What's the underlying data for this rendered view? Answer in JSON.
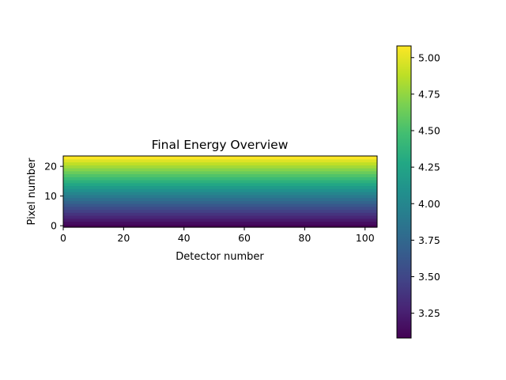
{
  "chart_data": {
    "type": "heatmap",
    "title": "Final Energy Overview",
    "xlabel": "Detector number",
    "ylabel": "Pixel number",
    "x_range": [
      0,
      104
    ],
    "y_range": [
      0,
      23
    ],
    "x_ticks": [
      0,
      20,
      40,
      60,
      80,
      100
    ],
    "y_ticks": [
      0,
      10,
      20
    ],
    "colormap": "viridis",
    "colorbar": {
      "range": [
        3.08,
        5.08
      ],
      "ticks": [
        "3.25",
        "3.50",
        "3.75",
        "4.00",
        "4.25",
        "4.50",
        "4.75",
        "5.00"
      ],
      "tick_values": [
        3.25,
        3.5,
        3.75,
        4.0,
        4.25,
        4.5,
        4.75,
        5.0
      ]
    },
    "row_values_by_pixel": [
      3.08,
      3.15,
      3.22,
      3.3,
      3.38,
      3.46,
      3.54,
      3.63,
      3.72,
      3.81,
      3.9,
      3.99,
      4.08,
      4.17,
      4.26,
      4.35,
      4.44,
      4.53,
      4.62,
      4.71,
      4.8,
      4.89,
      4.98,
      5.08
    ],
    "grid": false
  }
}
